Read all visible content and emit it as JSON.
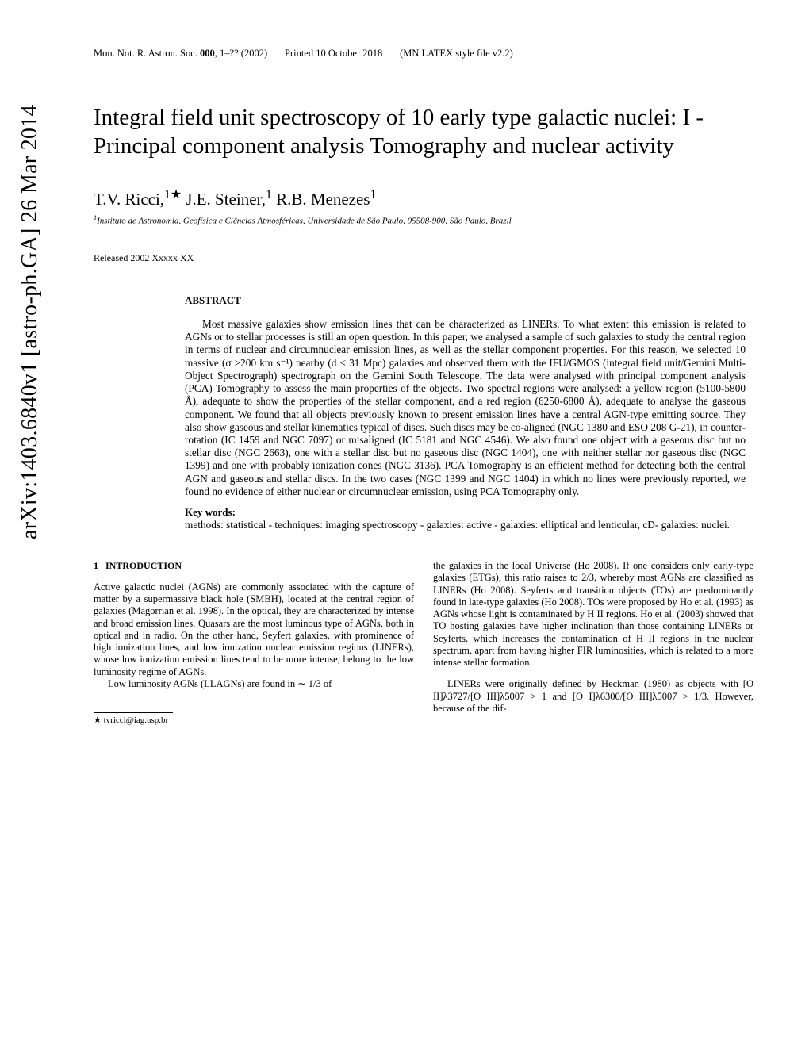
{
  "header": {
    "journal": "Mon. Not. R. Astron. Soc.",
    "volume": "000",
    "pages": ", 1–??",
    "year": "(2002)",
    "printed": "Printed 10 October 2018",
    "style": "(MN LATEX style file v2.2)"
  },
  "arxiv": "arXiv:1403.6840v1  [astro-ph.GA]  26 Mar 2014",
  "title": "Integral field unit spectroscopy of 10 early type galactic nuclei: I - Principal component analysis Tomography and nuclear activity",
  "authors_html": "T.V. Ricci,<sup>1★</sup> J.E. Steiner,<sup>1</sup> R.B. Menezes<sup>1</sup>",
  "affiliation_html": "<sup>1</sup>Instituto de Astronomia, Geofísica e Ciências Atmosféricas, Universidade de São Paulo, 05508-900, São Paulo, Brazil",
  "released": "Released 2002 Xxxxx XX",
  "abstract": {
    "heading": "ABSTRACT",
    "text": "Most massive galaxies show emission lines that can be characterized as LINERs. To what extent this emission is related to AGNs or to stellar processes is still an open question. In this paper, we analysed a sample of such galaxies to study the central region in terms of nuclear and circumnuclear emission lines, as well as the stellar component properties. For this reason, we selected 10 massive (σ >200 km s⁻¹) nearby (d < 31 Mpc) galaxies and observed them with the IFU/GMOS (integral field unit/Gemini Multi-Object Spectrograph) spectrograph on the Gemini South Telescope. The data were analysed with principal component analysis (PCA) Tomography to assess the main properties of the objects. Two spectral regions were analysed: a yellow region (5100-5800 Å), adequate to show the properties of the stellar component, and a red region (6250-6800 Å), adequate to analyse the gaseous component. We found that all objects previously known to present emission lines have a central AGN-type emitting source. They also show gaseous and stellar kinematics typical of discs. Such discs may be co-aligned (NGC 1380 and ESO 208 G-21), in counter-rotation (IC 1459 and NGC 7097) or misaligned (IC 5181 and NGC 4546). We also found one object with a gaseous disc but no stellar disc (NGC 2663), one with a stellar disc but no gaseous disc (NGC 1404), one with neither stellar nor gaseous disc (NGC 1399) and one with probably ionization cones (NGC 3136). PCA Tomography is an efficient method for detecting both the central AGN and gaseous and stellar discs. In the two cases (NGC 1399 and NGC 1404) in which no lines were previously reported, we found no evidence of either nuclear or circumnuclear emission, using PCA Tomography only.",
    "keywords_heading": "Key words:",
    "keywords": "methods: statistical - techniques: imaging spectroscopy - galaxies: active - galaxies: elliptical and lenticular, cD- galaxies: nuclei."
  },
  "body": {
    "section_number": "1",
    "section_title": "INTRODUCTION",
    "col1_p1": "Active galactic nuclei (AGNs) are commonly associated with the capture of matter by a supermassive black hole (SMBH), located at the central region of galaxies (Magorrian et al. 1998). In the optical, they are characterized by intense and broad emission lines. Quasars are the most luminous type of AGNs, both in optical and in radio. On the other hand, Seyfert galaxies, with prominence of high ionization lines, and low ionization nuclear emission regions (LINERs), whose low ionization emission lines tend to be more intense, belong to the low luminosity regime of AGNs.",
    "col1_p2": "Low luminosity AGNs (LLAGNs) are found in ∼ 1/3 of",
    "col2_p1": "the galaxies in the local Universe (Ho 2008). If one considers only early-type galaxies (ETGs), this ratio raises to 2/3, whereby most AGNs are classified as LINERs (Ho 2008). Seyferts and transition objects (TOs) are predominantly found in late-type galaxies (Ho 2008). TOs were proposed by Ho et al. (1993) as AGNs whose light is contaminated by H II regions. Ho et al. (2003) showed that TO hosting galaxies have higher inclination than those containing LINERs or Seyferts, which increases the contamination of H II regions in the nuclear spectrum, apart from having higher FIR luminosities, which is related to a more intense stellar formation.",
    "col2_p2": "LINERs were originally defined by Heckman (1980) as objects with [O II]λ3727/[O III]λ5007 > 1 and [O I]λ6300/[O III]λ5007 > 1/3. However, because of the dif-"
  },
  "footnote": "★ tvricci@iag.usp.br"
}
